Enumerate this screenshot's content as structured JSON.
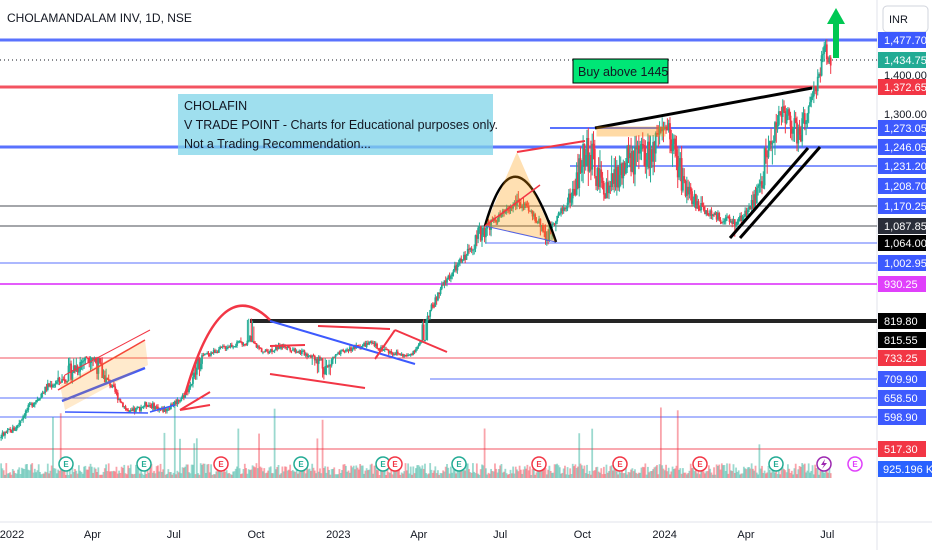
{
  "header": {
    "title": "CHOLAMANDALAM INV, 1D, NSE",
    "currency": "INR"
  },
  "note": {
    "lines": [
      "CHOLAFIN",
      "V TRADE POINT - Charts for Educational purposes only.",
      "Not a Trading Recommendation..."
    ]
  },
  "buy_label": "Buy above 1445",
  "price_labels": [
    {
      "text": "1,477.70",
      "value": 1477.7,
      "bg": "#3d5afe",
      "fg": "#ffffff"
    },
    {
      "text": "1,434.75",
      "value": 1434.75,
      "bg": "#22ab94",
      "fg": "#ffffff"
    },
    {
      "text": "1,400.00",
      "value": 1400,
      "bg": "#ffffff",
      "fg": "#131722"
    },
    {
      "text": "1,372.65",
      "value": 1372.65,
      "bg": "#f23645",
      "fg": "#ffffff"
    },
    {
      "text": "1,300.00",
      "value": 1300,
      "bg": "#ffffff",
      "fg": "#131722"
    },
    {
      "text": "1,273.05",
      "value": 1273.05,
      "bg": "#3d5afe",
      "fg": "#ffffff"
    },
    {
      "text": "1,246.05",
      "value": 1246.05,
      "bg": "#3d5afe",
      "fg": "#ffffff"
    },
    {
      "text": "1,231.20",
      "value": 1231.2,
      "bg": "#3d5afe",
      "fg": "#ffffff"
    },
    {
      "text": "1,208.70",
      "value": 1208.7,
      "bg": "#3d5afe",
      "fg": "#ffffff"
    },
    {
      "text": "1,170.25",
      "value": 1170.25,
      "bg": "#3d5afe",
      "fg": "#ffffff"
    },
    {
      "text": "1,087.85",
      "value": 1087.85,
      "bg": "#2a2e39",
      "fg": "#ffffff"
    },
    {
      "text": "1,064.00",
      "value": 1064,
      "bg": "#000000",
      "fg": "#ffffff"
    },
    {
      "text": "1,002.95",
      "value": 1002.95,
      "bg": "#3d5afe",
      "fg": "#ffffff"
    },
    {
      "text": "930.25",
      "value": 930.25,
      "bg": "#e040fb",
      "fg": "#ffffff"
    },
    {
      "text": "819.80",
      "value": 819.8,
      "bg": "#000000",
      "fg": "#ffffff"
    },
    {
      "text": "815.55",
      "value": 815.55,
      "bg": "#000000",
      "fg": "#ffffff"
    },
    {
      "text": "733.25",
      "value": 733.25,
      "bg": "#f23645",
      "fg": "#ffffff"
    },
    {
      "text": "709.90",
      "value": 709.9,
      "bg": "#3d5afe",
      "fg": "#ffffff"
    },
    {
      "text": "658.50",
      "value": 658.5,
      "bg": "#3d5afe",
      "fg": "#ffffff"
    },
    {
      "text": "598.90",
      "value": 598.9,
      "bg": "#3d5afe",
      "fg": "#ffffff"
    },
    {
      "text": "517.30",
      "value": 517.3,
      "bg": "#f23645",
      "fg": "#ffffff"
    }
  ],
  "volume_label": {
    "text": "925.196 K",
    "bg": "#2962ff",
    "fg": "#ffffff"
  },
  "chart_data": {
    "type": "candlestick",
    "symbol": "CHOLAMANDALAM INV",
    "interval": "1D",
    "exchange": "NSE",
    "x_ticks": [
      "2022",
      "Apr",
      "Jul",
      "Oct",
      "2023",
      "Apr",
      "Jul",
      "Oct",
      "2024",
      "Apr",
      "Jul"
    ],
    "x_domain": [
      "2021-11-15",
      "2024-08-20"
    ],
    "y_range": [
      440,
      1520
    ],
    "price_path": [
      [
        "2021-11-15",
        590
      ],
      [
        "2021-12-10",
        540
      ],
      [
        "2022-01-05",
        570
      ],
      [
        "2022-01-20",
        630
      ],
      [
        "2022-02-10",
        690
      ],
      [
        "2022-03-10",
        720
      ],
      [
        "2022-03-30",
        740
      ],
      [
        "2022-04-20",
        700
      ],
      [
        "2022-05-12",
        610
      ],
      [
        "2022-06-01",
        640
      ],
      [
        "2022-06-20",
        620
      ],
      [
        "2022-07-10",
        660
      ],
      [
        "2022-08-01",
        740
      ],
      [
        "2022-09-01",
        790
      ],
      [
        "2022-09-25",
        810
      ],
      [
        "2022-10-10",
        760
      ],
      [
        "2022-11-01",
        790
      ],
      [
        "2022-11-20",
        760
      ],
      [
        "2022-12-20",
        720
      ],
      [
        "2023-01-10",
        770
      ],
      [
        "2023-02-05",
        800
      ],
      [
        "2023-03-01",
        760
      ],
      [
        "2023-03-20",
        740
      ],
      [
        "2023-04-10",
        830
      ],
      [
        "2023-05-01",
        940
      ],
      [
        "2023-06-01",
        1060
      ],
      [
        "2023-06-25",
        1110
      ],
      [
        "2023-07-20",
        1180
      ],
      [
        "2023-08-05",
        1140
      ],
      [
        "2023-08-22",
        1070
      ],
      [
        "2023-09-10",
        1160
      ],
      [
        "2023-10-05",
        1250
      ],
      [
        "2023-10-25",
        1200
      ],
      [
        "2023-11-20",
        1230
      ],
      [
        "2023-12-15",
        1240
      ],
      [
        "2024-01-05",
        1270
      ],
      [
        "2024-01-25",
        1200
      ],
      [
        "2024-02-25",
        1130
      ],
      [
        "2024-03-20",
        1100
      ],
      [
        "2024-04-05",
        1160
      ],
      [
        "2024-04-25",
        1240
      ],
      [
        "2024-05-12",
        1310
      ],
      [
        "2024-05-30",
        1260
      ],
      [
        "2024-06-12",
        1320
      ],
      [
        "2024-06-28",
        1460
      ],
      [
        "2024-07-05",
        1434.75
      ]
    ],
    "horizontal_levels": [
      1477.7,
      1372.65,
      1273.05,
      1246.05,
      1231.2,
      1170.25,
      1087.85,
      1064,
      1002.95,
      930.25,
      819.8,
      733.25,
      709.9,
      658.5,
      598.9,
      517.3
    ],
    "last_price": 1434.75,
    "volume_last": "925.196 K",
    "annotations": [
      "Buy above 1445",
      "CHOLAFIN",
      "V TRADE POINT - Charts for Educational purposes only.",
      "Not a Trading Recommendation..."
    ]
  }
}
